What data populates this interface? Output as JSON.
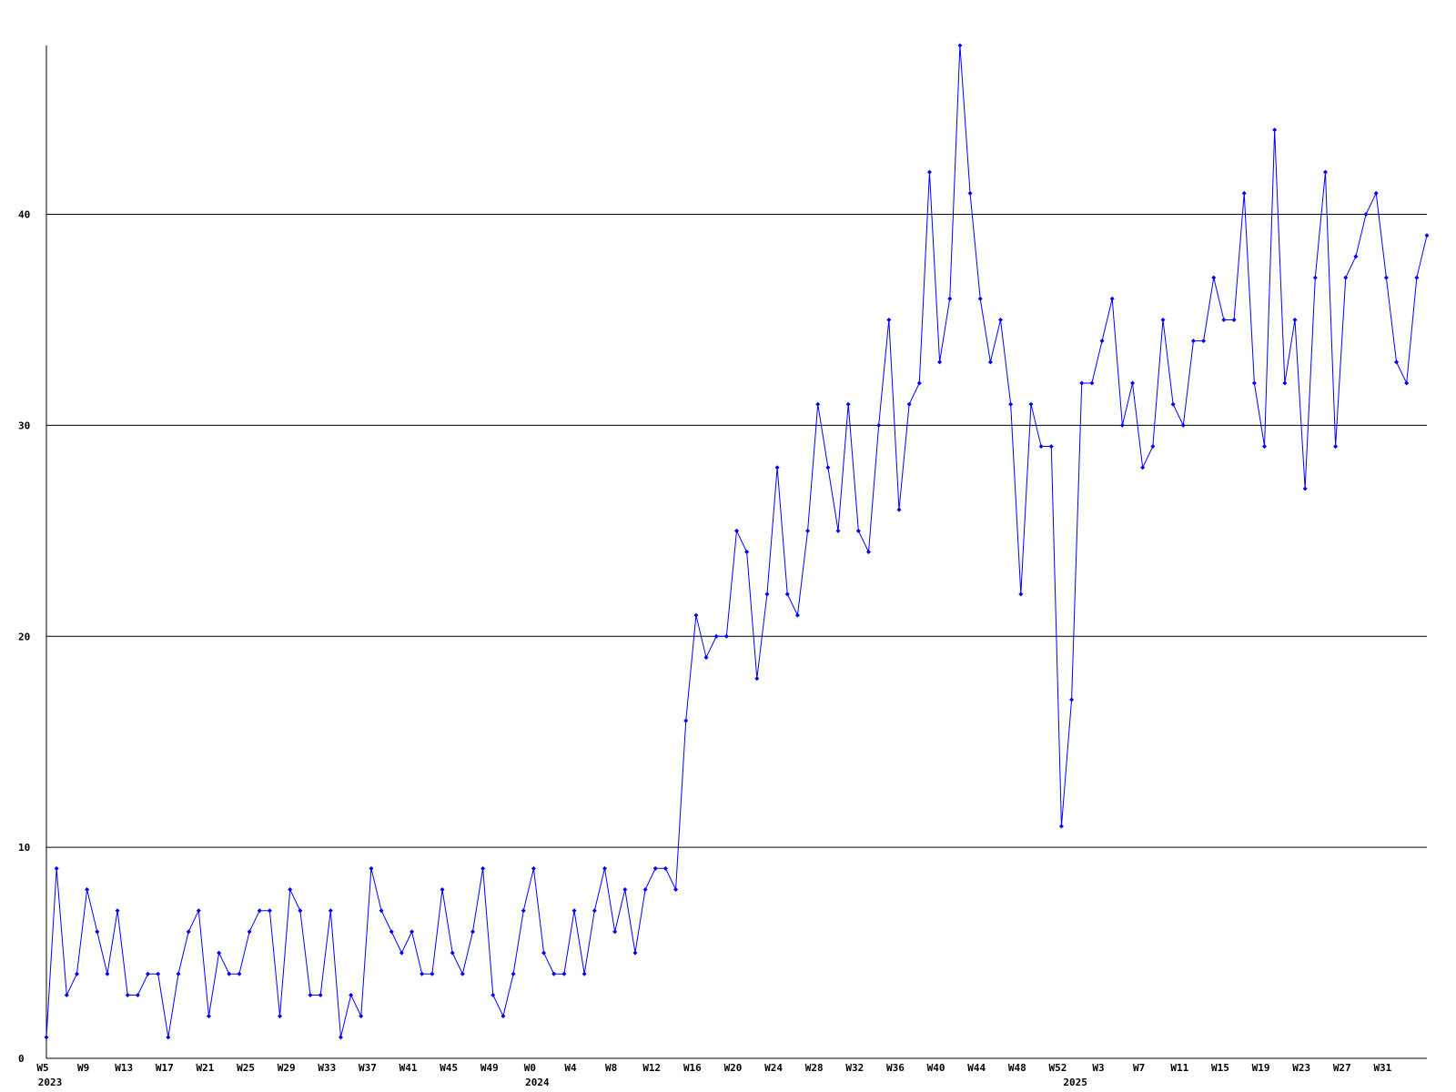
{
  "chart_data": {
    "type": "line",
    "categories": [
      "W5",
      null,
      null,
      null,
      "W9",
      null,
      null,
      null,
      "W13",
      null,
      null,
      null,
      "W17",
      null,
      null,
      null,
      "W21",
      null,
      null,
      null,
      "W25",
      null,
      null,
      null,
      "W29",
      null,
      null,
      null,
      "W33",
      null,
      null,
      null,
      "W37",
      null,
      null,
      null,
      "W41",
      null,
      null,
      null,
      "W45",
      null,
      null,
      null,
      "W49",
      null,
      null,
      null,
      "W0",
      null,
      null,
      null,
      "W4",
      null,
      null,
      null,
      "W8",
      null,
      null,
      null,
      "W12",
      null,
      null,
      null,
      "W16",
      null,
      null,
      null,
      "W20",
      null,
      null,
      null,
      "W24",
      null,
      null,
      null,
      "W28",
      null,
      null,
      null,
      "W32",
      null,
      null,
      null,
      "W36",
      null,
      null,
      null,
      "W40",
      null,
      null,
      null,
      "W44",
      null,
      null,
      null,
      "W48",
      null,
      null,
      null,
      "W52",
      null,
      null,
      null,
      "W3",
      null,
      null,
      null,
      "W7",
      null,
      null,
      null,
      "W11",
      null,
      null,
      null,
      "W15",
      null,
      null,
      null,
      "W19",
      null,
      null,
      null,
      "W23",
      null,
      null,
      null,
      "W27",
      null,
      null,
      null,
      "W31",
      null,
      null,
      null,
      null
    ],
    "years": [
      "2023",
      null,
      null,
      null,
      null,
      null,
      null,
      null,
      null,
      null,
      null,
      null,
      null,
      null,
      null,
      null,
      null,
      null,
      null,
      null,
      null,
      null,
      null,
      null,
      null,
      null,
      null,
      null,
      null,
      null,
      null,
      null,
      null,
      null,
      null,
      null,
      null,
      null,
      null,
      null,
      null,
      null,
      null,
      null,
      null,
      null,
      null,
      null,
      "2024",
      null,
      null,
      null,
      null,
      null,
      null,
      null,
      null,
      null,
      null,
      null,
      null,
      null,
      null,
      null,
      null,
      null,
      null,
      null,
      null,
      null,
      null,
      null,
      null,
      null,
      null,
      null,
      null,
      null,
      null,
      null,
      null,
      null,
      null,
      null,
      null,
      null,
      null,
      null,
      null,
      null,
      null,
      null,
      null,
      null,
      null,
      null,
      null,
      null,
      null,
      null,
      null,
      "2025",
      null,
      null,
      null,
      null,
      null,
      null,
      null,
      null,
      null,
      null,
      null,
      null,
      null,
      null,
      null,
      null,
      null,
      null,
      null,
      null,
      null,
      null,
      null,
      null,
      null,
      null,
      null,
      null,
      null,
      null,
      null,
      null,
      null,
      null,
      null
    ],
    "series": [
      {
        "color": "#0000ff",
        "values": [
          1,
          9,
          3,
          4,
          8,
          6,
          4,
          7,
          3,
          3,
          4,
          4,
          1,
          4,
          6,
          7,
          2,
          5,
          4,
          4,
          6,
          7,
          7,
          2,
          8,
          7,
          3,
          3,
          7,
          1,
          3,
          2,
          9,
          7,
          6,
          5,
          6,
          4,
          4,
          8,
          5,
          4,
          6,
          9,
          3,
          2,
          4,
          7,
          9,
          5,
          4,
          4,
          7,
          4,
          7,
          9,
          6,
          8,
          5,
          8,
          9,
          9,
          8,
          16,
          21,
          19,
          20,
          20,
          25,
          24,
          18,
          22,
          28,
          22,
          21,
          25,
          31,
          28,
          25,
          31,
          25,
          24,
          30,
          35,
          26,
          31,
          32,
          42,
          33,
          36,
          48,
          41,
          36,
          33,
          35,
          31,
          22,
          31,
          29,
          29,
          11,
          17,
          32,
          32,
          34,
          36,
          30,
          32,
          28,
          29,
          35,
          31,
          30,
          34,
          34,
          37,
          35,
          35,
          41,
          32,
          29,
          44,
          32,
          35,
          27,
          37,
          42,
          29,
          37,
          38,
          40,
          41,
          37,
          33,
          32,
          37,
          39
        ]
      }
    ],
    "ylim": [
      0,
      48
    ],
    "yticks": [
      0,
      10,
      20,
      30,
      40
    ],
    "grid": true
  }
}
